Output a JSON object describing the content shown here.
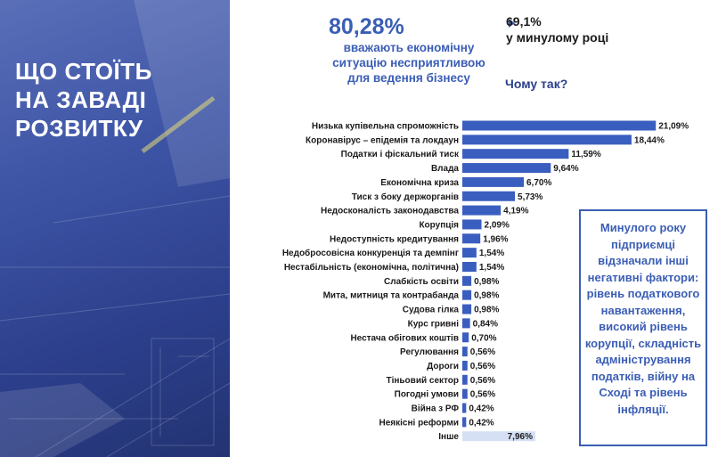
{
  "left_title_lines": [
    "ЩО СТОЇТЬ",
    "НА ЗАВАДІ",
    "РОЗВИТКУ"
  ],
  "headline": {
    "value": "80,28%",
    "description": "вважають економічну ситуацію несприятливою для ведення бізнесу",
    "prev_value": "69,1%",
    "prev_label": "у минулому році",
    "why": "Чому так?"
  },
  "note": "Минулого року підприємці відзначали інші негативні фактори: рівень податкового навантаження, високий рівень корупції, складність адміністрування податків, війну на Сході та рівень інфляції.",
  "colors": {
    "accent": "#3b5eb5",
    "bar": "#3a5ebf",
    "bar_other": "#d6e0f5"
  },
  "chart_data": {
    "type": "bar",
    "orientation": "horizontal",
    "categories": [
      "Низька купівельна спроможність",
      "Коронавірус – епідемія та локдаун",
      "Податки і фіскальний тиск",
      "Влада",
      "Економічна криза",
      "Тиск з боку держорганів",
      "Недосконалість законодавства",
      "Корупція",
      "Недоступність кредитування",
      "Недобросовісна конкуренція та демпінг",
      "Нестабільність (економічна, політична)",
      "Слабкість освіти",
      "Мита, митниця та контрабанда",
      "Судова гілка",
      "Курс гривні",
      "Нестача обігових коштів",
      "Регулювання",
      "Дороги",
      "Тіньовий сектор",
      "Погодні умови",
      "Війна з РФ",
      "Неякісні реформи",
      "Інше"
    ],
    "values": [
      21.09,
      18.44,
      11.59,
      9.64,
      6.7,
      5.73,
      4.19,
      2.09,
      1.96,
      1.54,
      1.54,
      0.98,
      0.98,
      0.98,
      0.84,
      0.7,
      0.56,
      0.56,
      0.56,
      0.56,
      0.42,
      0.42,
      7.96
    ],
    "value_labels": [
      "21,09%",
      "18,44%",
      "11,59%",
      "9,64%",
      "6,70%",
      "5,73%",
      "4,19%",
      "2,09%",
      "1,96%",
      "1,54%",
      "1,54%",
      "0,98%",
      "0,98%",
      "0,98%",
      "0,84%",
      "0,70%",
      "0,56%",
      "0,56%",
      "0,56%",
      "0,56%",
      "0,42%",
      "0,42%",
      "7,96%"
    ],
    "highlight_last_as_other": true
  }
}
